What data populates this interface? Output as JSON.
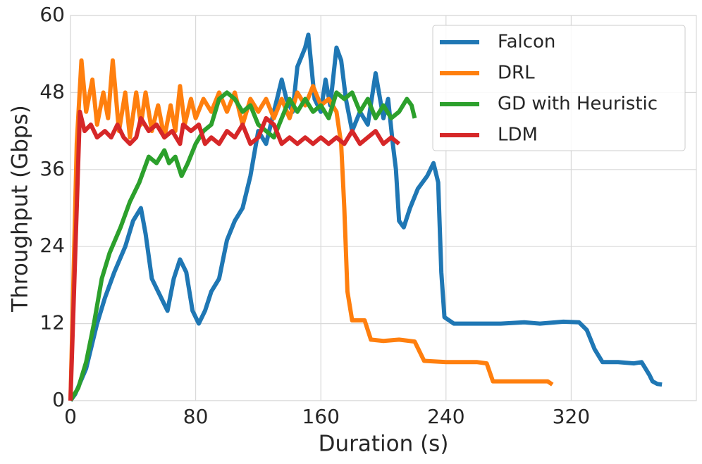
{
  "chart_data": {
    "type": "line",
    "xlabel": "Duration (s)",
    "ylabel": "Throughput (Gbps)",
    "xlim": [
      0,
      400
    ],
    "ylim": [
      0,
      60
    ],
    "xticks": [
      0,
      80,
      160,
      240,
      320
    ],
    "yticks": [
      0,
      12,
      24,
      36,
      48,
      60
    ],
    "grid": true,
    "legend": "upper right",
    "series": [
      {
        "name": "Falcon",
        "color": "#1f77b4",
        "x": [
          0,
          3,
          10,
          17,
          22,
          28,
          35,
          40,
          45,
          48,
          52,
          56,
          60,
          62,
          66,
          70,
          74,
          78,
          82,
          86,
          90,
          95,
          100,
          105,
          110,
          115,
          120,
          125,
          130,
          135,
          138,
          142,
          145,
          150,
          152,
          156,
          160,
          163,
          166,
          170,
          173,
          176,
          180,
          185,
          190,
          195,
          200,
          203,
          206,
          208,
          210,
          213,
          217,
          222,
          228,
          232,
          235,
          237,
          239,
          245,
          260,
          275,
          290,
          300,
          315,
          325,
          330,
          335,
          340,
          350,
          360,
          365,
          370,
          372,
          375,
          378
        ],
        "values": [
          0,
          1,
          5,
          12,
          16,
          20,
          24,
          28,
          30,
          26,
          19,
          17,
          15,
          14,
          19,
          22,
          20,
          14,
          12,
          14,
          17,
          19,
          25,
          28,
          30,
          35,
          42,
          40,
          45,
          50,
          47,
          45,
          52,
          55,
          57,
          47,
          45,
          50,
          46,
          55,
          53,
          47,
          42,
          45,
          43,
          51,
          44,
          47,
          40,
          36,
          28,
          27,
          30,
          33,
          35,
          37,
          34,
          20,
          13,
          12,
          12,
          12,
          12.2,
          12,
          12.3,
          12.2,
          11,
          8,
          6,
          6,
          5.8,
          6,
          4,
          3,
          2.6,
          2.5
        ]
      },
      {
        "name": "DRL",
        "color": "#ff7f0e",
        "x": [
          0,
          4,
          7,
          10,
          14,
          17,
          21,
          24,
          27,
          31,
          35,
          38,
          42,
          45,
          48,
          52,
          56,
          60,
          64,
          67,
          70,
          73,
          77,
          80,
          85,
          90,
          95,
          100,
          105,
          110,
          115,
          120,
          125,
          130,
          135,
          140,
          145,
          150,
          155,
          160,
          165,
          170,
          173,
          175,
          177,
          180,
          188,
          192,
          200,
          210,
          220,
          226,
          240,
          260,
          266,
          270,
          290,
          305,
          308
        ],
        "values": [
          0,
          40,
          53,
          45,
          50,
          43,
          48,
          44,
          53,
          42,
          48,
          41,
          48,
          43,
          48,
          42,
          46,
          41,
          46,
          42,
          49,
          43,
          47,
          44,
          47,
          45,
          48,
          45,
          48,
          43,
          47,
          45,
          47,
          44,
          47,
          44,
          48,
          46,
          49,
          46,
          47,
          45,
          40,
          30,
          17,
          12.5,
          12.5,
          9.5,
          9.3,
          9.5,
          9.2,
          6.2,
          6,
          6,
          5.8,
          3,
          3,
          3,
          2.5
        ]
      },
      {
        "name": "GD with Heuristic",
        "color": "#2ca02c",
        "x": [
          0,
          5,
          10,
          15,
          20,
          25,
          32,
          38,
          44,
          50,
          55,
          60,
          63,
          67,
          71,
          75,
          80,
          85,
          90,
          95,
          100,
          105,
          110,
          115,
          120,
          125,
          130,
          135,
          140,
          145,
          150,
          155,
          160,
          165,
          170,
          175,
          180,
          185,
          190,
          195,
          200,
          205,
          210,
          215,
          218,
          220
        ],
        "values": [
          0,
          2,
          6,
          12,
          19,
          23,
          27,
          31,
          34,
          38,
          37,
          39,
          37,
          38,
          35,
          37,
          40,
          42,
          43,
          47,
          48,
          47,
          45,
          46,
          43,
          42,
          41,
          44,
          47,
          45,
          47,
          45,
          46,
          44,
          48,
          47,
          48,
          45,
          47,
          44,
          46,
          44,
          45,
          47,
          46,
          44
        ]
      },
      {
        "name": "LDM",
        "color": "#d62728",
        "x": [
          0,
          4,
          6,
          9,
          13,
          17,
          22,
          26,
          30,
          34,
          38,
          42,
          45,
          50,
          55,
          60,
          65,
          70,
          72,
          77,
          82,
          86,
          90,
          95,
          100,
          105,
          110,
          115,
          120,
          125,
          130,
          135,
          140,
          145,
          150,
          155,
          160,
          165,
          170,
          175,
          180,
          185,
          190,
          195,
          200,
          205,
          210
        ],
        "values": [
          0,
          30,
          45,
          42,
          43,
          41,
          42,
          41,
          43,
          41,
          40,
          41,
          44,
          42,
          43,
          41,
          42,
          40,
          43,
          42,
          43,
          40,
          41,
          40,
          42,
          41,
          43,
          40,
          41,
          44,
          43,
          40,
          41,
          40,
          41,
          40,
          41,
          40,
          41,
          40,
          42,
          40,
          41,
          42,
          40,
          41,
          40
        ]
      }
    ]
  }
}
